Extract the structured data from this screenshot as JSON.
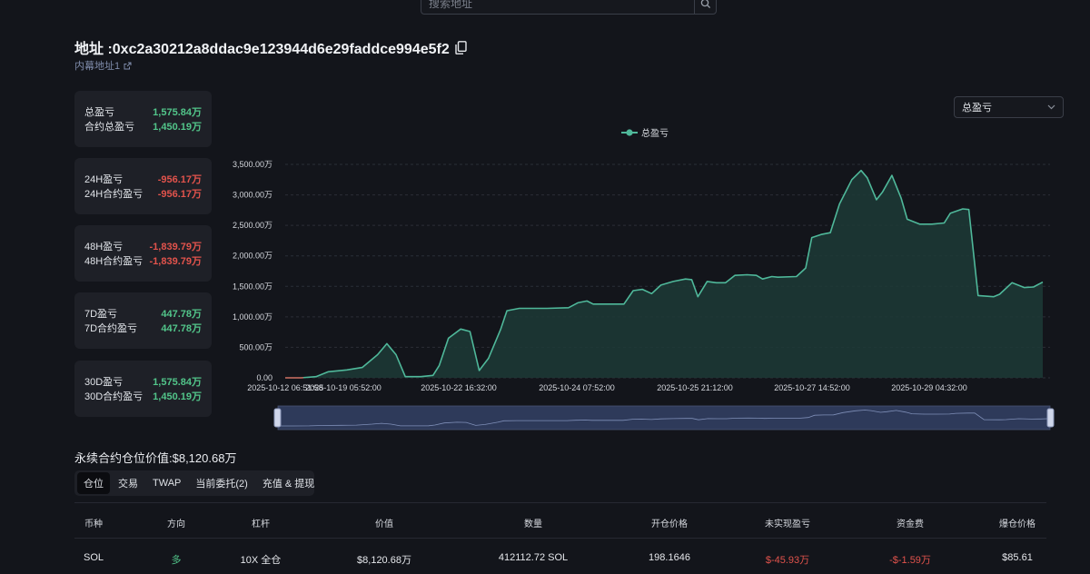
{
  "search": {
    "placeholder": "搜索地址"
  },
  "header": {
    "title": "地址 :0xc2a30212a8ddac9e123944d6e29faddce994e5f2",
    "subtitle": "内幕地址1"
  },
  "cards": [
    {
      "rows": [
        {
          "label": "总盈亏",
          "value": "1,575.84万",
          "sign": "pos"
        },
        {
          "label": "合约总盈亏",
          "value": "1,450.19万",
          "sign": "pos"
        }
      ]
    },
    {
      "rows": [
        {
          "label": "24H盈亏",
          "value": "-956.17万",
          "sign": "neg"
        },
        {
          "label": "24H合约盈亏",
          "value": "-956.17万",
          "sign": "neg"
        }
      ]
    },
    {
      "rows": [
        {
          "label": "48H盈亏",
          "value": "-1,839.79万",
          "sign": "neg"
        },
        {
          "label": "48H合约盈亏",
          "value": "-1,839.79万",
          "sign": "neg"
        }
      ]
    },
    {
      "rows": [
        {
          "label": "7D盈亏",
          "value": "447.78万",
          "sign": "pos"
        },
        {
          "label": "7D合约盈亏",
          "value": "447.78万",
          "sign": "pos"
        }
      ]
    },
    {
      "rows": [
        {
          "label": "30D盈亏",
          "value": "1,575.84万",
          "sign": "pos"
        },
        {
          "label": "30D合约盈亏",
          "value": "1,450.19万",
          "sign": "pos"
        }
      ]
    }
  ],
  "metric_select": {
    "value": "总盈亏"
  },
  "colors": {
    "accent": "#4fb89a",
    "positive": "#52c58a",
    "negative": "#e2534c",
    "background": "#13151b",
    "card": "#1e2027"
  },
  "chart_data": {
    "type": "area",
    "series": [
      {
        "name": "总盈亏"
      }
    ],
    "y_unit": "万",
    "ylim": [
      0,
      3500
    ],
    "y_ticks": [
      "0.00",
      "500.00万",
      "1,000.00万",
      "1,500.00万",
      "2,000.00万",
      "2,500.00万",
      "3,000.00万",
      "3,500.00万"
    ],
    "x_ticks": [
      "2025-10-12 06:51:58",
      "2025-10-19 05:52:00",
      "2025-10-22 16:32:00",
      "2025-10-24 07:52:00",
      "2025-10-25 21:12:00",
      "2025-10-27 14:52:00",
      "2025-10-29 04:32:00"
    ],
    "grid": true,
    "legend": "top-center",
    "points": [
      [
        0,
        0
      ],
      [
        0.5,
        0
      ],
      [
        1,
        20
      ],
      [
        1.4,
        100
      ],
      [
        2,
        130
      ],
      [
        2.5,
        170
      ],
      [
        3,
        380
      ],
      [
        3.3,
        560
      ],
      [
        3.6,
        380
      ],
      [
        3.9,
        20
      ],
      [
        4.4,
        20
      ],
      [
        4.8,
        40
      ],
      [
        5,
        200
      ],
      [
        5.3,
        650
      ],
      [
        5.7,
        800
      ],
      [
        6,
        760
      ],
      [
        6.3,
        120
      ],
      [
        6.6,
        320
      ],
      [
        7,
        800
      ],
      [
        7.2,
        1100
      ],
      [
        7.6,
        1140
      ],
      [
        8.5,
        1140
      ],
      [
        9.2,
        1150
      ],
      [
        9.5,
        1230
      ],
      [
        9.8,
        1260
      ],
      [
        10,
        1210
      ],
      [
        11,
        1210
      ],
      [
        11.3,
        1430
      ],
      [
        11.6,
        1450
      ],
      [
        11.9,
        1380
      ],
      [
        12.2,
        1520
      ],
      [
        12.6,
        1580
      ],
      [
        13,
        1620
      ],
      [
        13.2,
        1610
      ],
      [
        13.4,
        1330
      ],
      [
        13.7,
        1580
      ],
      [
        14,
        1560
      ],
      [
        14.3,
        1560
      ],
      [
        14.6,
        1680
      ],
      [
        15,
        1690
      ],
      [
        15.3,
        1680
      ],
      [
        15.5,
        1620
      ],
      [
        15.8,
        1660
      ],
      [
        16,
        1650
      ],
      [
        16.6,
        1660
      ],
      [
        16.9,
        1800
      ],
      [
        17.1,
        2300
      ],
      [
        17.4,
        2350
      ],
      [
        17.7,
        2380
      ],
      [
        18,
        2850
      ],
      [
        18.4,
        3250
      ],
      [
        18.7,
        3400
      ],
      [
        18.9,
        3280
      ],
      [
        19.2,
        2920
      ],
      [
        19.4,
        3050
      ],
      [
        19.7,
        3320
      ],
      [
        20,
        2950
      ],
      [
        20.2,
        2600
      ],
      [
        20.6,
        2520
      ],
      [
        21,
        2520
      ],
      [
        21.4,
        2540
      ],
      [
        21.6,
        2700
      ],
      [
        22,
        2770
      ],
      [
        22.2,
        2760
      ],
      [
        22.5,
        1350
      ],
      [
        23,
        1330
      ],
      [
        23.2,
        1370
      ],
      [
        23.6,
        1560
      ],
      [
        24,
        1480
      ],
      [
        24.3,
        1490
      ],
      [
        24.6,
        1570
      ]
    ]
  },
  "position_value": "永续合约仓位价值:$8,120.68万",
  "tabs": [
    "仓位",
    "交易",
    "TWAP",
    "当前委托(2)",
    "充值 & 提现"
  ],
  "table": {
    "headers": [
      "币种",
      "方向",
      "杠杆",
      "价值",
      "数量",
      "开仓价格",
      "未实现盈亏",
      "资金费",
      "爆仓价格"
    ],
    "rows": [
      [
        "SOL",
        "多",
        "10X 全仓",
        "$8,120.68万",
        "412112.72 SOL",
        "198.1646",
        "$-45.93万",
        "-$-1.59万",
        "$85.61"
      ]
    ]
  }
}
